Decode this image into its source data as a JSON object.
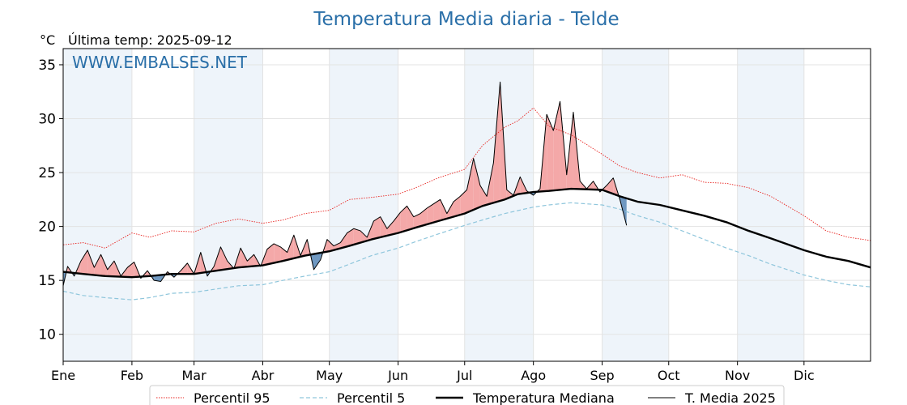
{
  "header": {
    "title": "Temperatura Media diaria - Telde",
    "unit": "°C",
    "last_temp": "Última temp: 2025-09-12",
    "watermark": "WWW.EMBALSES.NET"
  },
  "colors": {
    "p95": "#e8231f",
    "p5": "#8fc6dc",
    "median": "#000000",
    "current": "#000000",
    "above_fill": "#f4a8a8",
    "below_fill": "#6f98c1",
    "band": "#eef4fa"
  },
  "chart_data": {
    "type": "line",
    "xlim": [
      1,
      365
    ],
    "ylim": [
      7.5,
      36.5
    ],
    "yticks": [
      10,
      15,
      20,
      25,
      30,
      35
    ],
    "month_labels": [
      "Ene",
      "Feb",
      "Mar",
      "Abr",
      "May",
      "Jun",
      "Jul",
      "Ago",
      "Sep",
      "Oct",
      "Nov",
      "Dic"
    ],
    "month_start_days": [
      1,
      32,
      60,
      91,
      121,
      152,
      182,
      213,
      244,
      274,
      305,
      335
    ],
    "legend": [
      "Percentil 95",
      "Percentil 5",
      "Temperatura Mediana",
      "T. Media 2025"
    ],
    "series": [
      {
        "name": "Percentil 95",
        "style": "dotted-red",
        "x": [
          1,
          10,
          20,
          32,
          40,
          50,
          60,
          70,
          80,
          91,
          100,
          110,
          121,
          130,
          140,
          152,
          160,
          170,
          182,
          190,
          200,
          206,
          213,
          220,
          230,
          244,
          252,
          260,
          270,
          280,
          290,
          300,
          310,
          320,
          335,
          345,
          355,
          365
        ],
        "y": [
          18.3,
          18.5,
          18.0,
          19.4,
          19.0,
          19.6,
          19.5,
          20.3,
          20.7,
          20.3,
          20.6,
          21.2,
          21.5,
          22.5,
          22.7,
          23.0,
          23.6,
          24.5,
          25.3,
          27.5,
          29.2,
          29.8,
          31.0,
          29.3,
          28.5,
          26.7,
          25.6,
          25.0,
          24.5,
          24.8,
          24.1,
          24.0,
          23.6,
          22.8,
          21.0,
          19.6,
          19.0,
          18.7
        ]
      },
      {
        "name": "Percentil 5",
        "style": "dashed-blue",
        "x": [
          1,
          10,
          20,
          32,
          40,
          50,
          60,
          70,
          80,
          91,
          100,
          110,
          121,
          130,
          140,
          152,
          160,
          170,
          182,
          190,
          200,
          213,
          220,
          230,
          244,
          252,
          260,
          270,
          280,
          290,
          300,
          310,
          320,
          335,
          345,
          355,
          365
        ],
        "y": [
          14.0,
          13.6,
          13.4,
          13.2,
          13.4,
          13.8,
          13.9,
          14.2,
          14.5,
          14.6,
          15.0,
          15.4,
          15.8,
          16.5,
          17.3,
          18.0,
          18.6,
          19.3,
          20.1,
          20.6,
          21.2,
          21.8,
          22.0,
          22.2,
          22.0,
          21.6,
          21.0,
          20.4,
          19.6,
          18.8,
          18.0,
          17.3,
          16.5,
          15.5,
          15.0,
          14.6,
          14.4
        ]
      },
      {
        "name": "Temperatura Mediana",
        "style": "thick-black",
        "x": [
          1,
          10,
          20,
          32,
          40,
          50,
          60,
          70,
          80,
          91,
          100,
          110,
          121,
          130,
          140,
          152,
          160,
          170,
          182,
          190,
          200,
          206,
          213,
          220,
          230,
          244,
          252,
          260,
          270,
          280,
          290,
          300,
          310,
          320,
          335,
          345,
          355,
          365
        ],
        "y": [
          15.8,
          15.6,
          15.4,
          15.3,
          15.4,
          15.6,
          15.6,
          15.9,
          16.2,
          16.4,
          16.8,
          17.3,
          17.7,
          18.2,
          18.8,
          19.4,
          19.9,
          20.5,
          21.2,
          21.9,
          22.5,
          23.0,
          23.2,
          23.3,
          23.5,
          23.4,
          22.8,
          22.3,
          22.0,
          21.5,
          21.0,
          20.4,
          19.6,
          18.9,
          17.8,
          17.2,
          16.8,
          16.2
        ]
      },
      {
        "name": "T. Media 2025",
        "style": "thin-black",
        "x": [
          1,
          3,
          6,
          9,
          12,
          15,
          18,
          21,
          24,
          27,
          30,
          33,
          36,
          39,
          42,
          45,
          48,
          51,
          54,
          57,
          60,
          63,
          66,
          69,
          72,
          75,
          78,
          81,
          84,
          87,
          90,
          93,
          96,
          99,
          102,
          105,
          108,
          111,
          114,
          117,
          120,
          123,
          126,
          129,
          132,
          135,
          138,
          141,
          144,
          147,
          150,
          153,
          156,
          159,
          162,
          165,
          168,
          171,
          174,
          177,
          180,
          183,
          186,
          189,
          192,
          195,
          198,
          201,
          204,
          207,
          210,
          213,
          216,
          219,
          222,
          225,
          228,
          231,
          234,
          237,
          240,
          243,
          246,
          249,
          252,
          255
        ],
        "y": [
          14.5,
          16.3,
          15.4,
          16.8,
          17.8,
          16.2,
          17.4,
          16.0,
          16.8,
          15.4,
          16.2,
          16.7,
          15.2,
          15.9,
          15.0,
          14.9,
          15.8,
          15.3,
          15.9,
          16.6,
          15.6,
          17.6,
          15.4,
          16.3,
          18.1,
          16.8,
          16.1,
          18.0,
          16.8,
          17.4,
          16.3,
          17.9,
          18.4,
          18.1,
          17.6,
          19.2,
          17.3,
          18.8,
          16.0,
          16.9,
          18.8,
          18.2,
          18.5,
          19.4,
          19.8,
          19.6,
          19.0,
          20.5,
          20.9,
          19.8,
          20.5,
          21.3,
          21.9,
          20.9,
          21.2,
          21.7,
          22.1,
          22.5,
          21.2,
          22.3,
          22.8,
          23.4,
          26.3,
          23.8,
          22.8,
          25.9,
          33.4,
          23.4,
          22.9,
          24.6,
          23.3,
          22.9,
          23.5,
          30.4,
          28.9,
          31.6,
          24.8,
          30.6,
          24.2,
          23.5,
          24.2,
          23.2,
          23.8,
          24.5,
          22.5,
          20.1
        ]
      }
    ]
  }
}
